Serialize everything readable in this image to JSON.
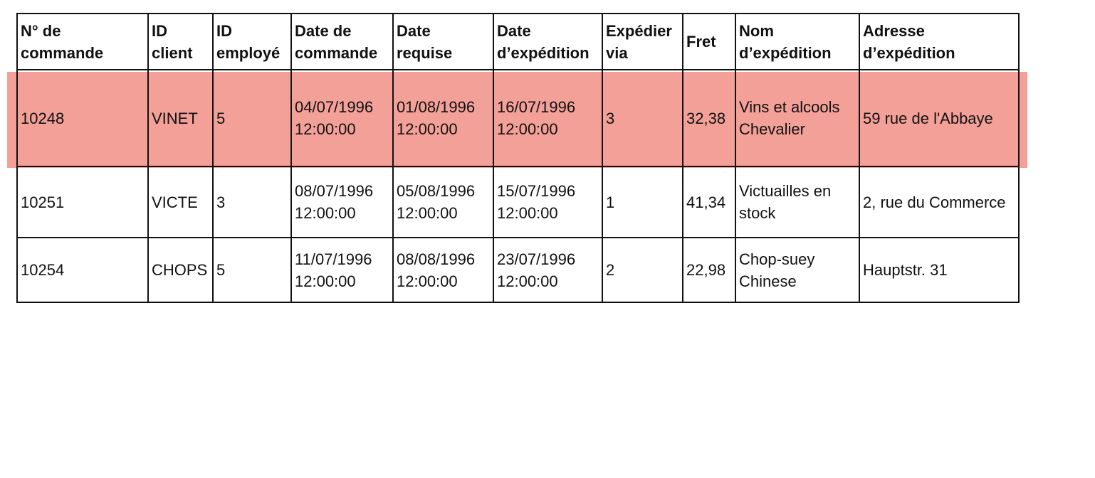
{
  "table": {
    "headers": [
      "N° de commande",
      "ID client",
      "ID employé",
      "Date de commande",
      "Date requise",
      "Date d’expédition",
      "Expédier via",
      "Fret",
      "Nom d’expédition",
      "Adresse d’expédition"
    ],
    "rows": [
      [
        "10248",
        "VINET",
        "5",
        "04/07/1996 12:00:00",
        "01/08/1996 12:00:00",
        "16/07/1996 12:00:00",
        "3",
        "32,38",
        "Vins et alcools Chevalier",
        "59 rue de l'Abbaye"
      ],
      [
        "10251",
        "VICTE",
        "3",
        "08/07/1996 12:00:00",
        "05/08/1996 12:00:00",
        "15/07/1996 12:00:00",
        "1",
        "41,34",
        "Victuailles en stock",
        "2, rue du Commerce"
      ],
      [
        "10254",
        "CHOPS",
        "5",
        "11/07/1996 12:00:00",
        "08/08/1996 12:00:00",
        "23/07/1996 12:00:00",
        "2",
        "22,98",
        "Chop-suey Chinese",
        "Hauptstr. 31"
      ]
    ]
  }
}
